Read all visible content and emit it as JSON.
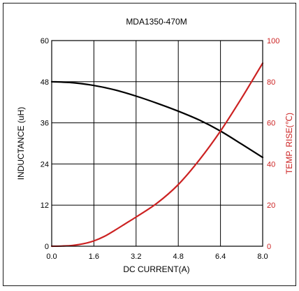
{
  "chart_data": {
    "type": "line",
    "title": "MDA1350-470M",
    "xlabel": "DC CURRENT(A)",
    "ylabel_left": "INDUCTANCE (uH)",
    "ylabel_right": "TEMP. RISE(℃)",
    "xlim": [
      0,
      8
    ],
    "ylim_left": [
      0,
      60
    ],
    "ylim_right": [
      0,
      100
    ],
    "x_ticks": [
      "0.0",
      "1.6",
      "3.2",
      "4.8",
      "6.4",
      "8.0"
    ],
    "y_left_ticks": [
      "0",
      "12",
      "24",
      "36",
      "48",
      "60"
    ],
    "y_right_ticks": [
      "0",
      "20",
      "40",
      "60",
      "80",
      "100"
    ],
    "grid": true,
    "legend": "none",
    "series": [
      {
        "axis": "left",
        "color": "#000000",
        "x": [
          0,
          0.8,
          1.6,
          2.4,
          3.2,
          4.0,
          4.8,
          5.6,
          6.4,
          7.2,
          8.0
        ],
        "y": [
          48.0,
          47.7,
          46.9,
          45.6,
          43.8,
          41.7,
          39.4,
          36.8,
          33.6,
          29.8,
          25.9
        ]
      },
      {
        "axis": "right",
        "color": "#cc2222",
        "x": [
          0,
          0.4,
          0.8,
          1.2,
          1.6,
          2.0,
          2.4,
          2.8,
          3.2,
          4.0,
          4.8,
          5.6,
          6.4,
          7.2,
          8.0
        ],
        "y": [
          0,
          0.1,
          0.4,
          1.2,
          2.6,
          4.8,
          7.8,
          11.0,
          14.2,
          21.0,
          30.0,
          42.0,
          56.0,
          72.0,
          89.0
        ]
      }
    ]
  }
}
